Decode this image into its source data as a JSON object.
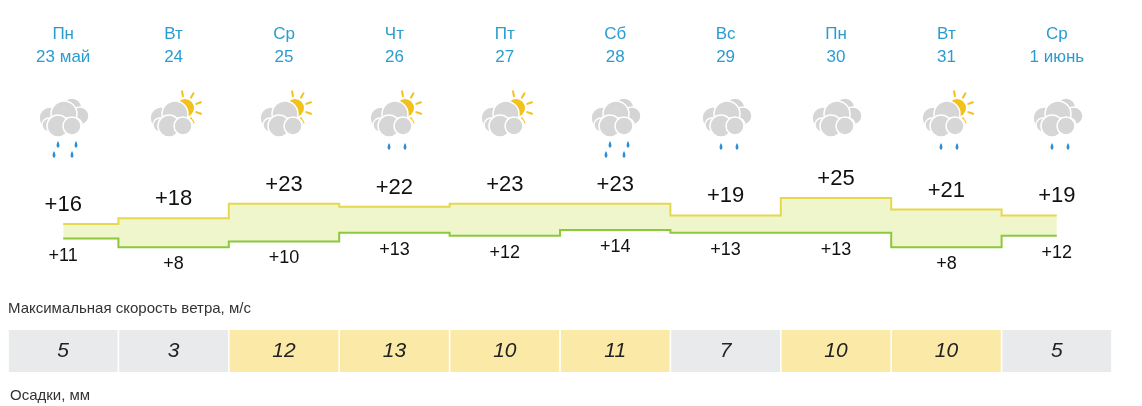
{
  "chart_data": [
    {
      "type": "step",
      "categories": [
        "Пн 23 май",
        "Вт 24",
        "Ср 25",
        "Чт 26",
        "Пт 27",
        "Сб 28",
        "Вс 29",
        "Пн 30",
        "Вт 31",
        "Ср 1 июнь"
      ],
      "series": [
        {
          "color": "#e6d84c",
          "values": [
            16,
            18,
            23,
            22,
            23,
            23,
            19,
            25,
            21,
            19
          ],
          "value_labels": [
            "+16",
            "+18",
            "+23",
            "+22",
            "+23",
            "+23",
            "+19",
            "+25",
            "+21",
            "+19"
          ],
          "lower": [
            11,
            8,
            10,
            13,
            12,
            14,
            13,
            13,
            8,
            12
          ],
          "upper": [
            16,
            18,
            23,
            22,
            23,
            23,
            19,
            25,
            21,
            19
          ]
        },
        {
          "color": "#8cc83c",
          "values": [
            11,
            8,
            10,
            13,
            12,
            14,
            13,
            13,
            8,
            12
          ],
          "value_labels": [
            "+11",
            "+8",
            "+10",
            "+13",
            "+12",
            "+14",
            "+13",
            "+13",
            "+8",
            "+12"
          ]
        }
      ],
      "tick_labels": "x",
      "legend": false
    },
    {
      "type": "heatmap",
      "title": "Максимальная скорость ветра, м/с",
      "categories": [
        null,
        null,
        null,
        null,
        null,
        null,
        null,
        null,
        null,
        null
      ],
      "y_categories": [
        null
      ],
      "cells": [
        [
          5,
          3,
          12,
          13,
          10,
          11,
          7,
          10,
          10,
          5
        ]
      ],
      "data_labels": true,
      "tick_labels": false,
      "annotations": [
        "Осадки, мм"
      ]
    }
  ]
}
